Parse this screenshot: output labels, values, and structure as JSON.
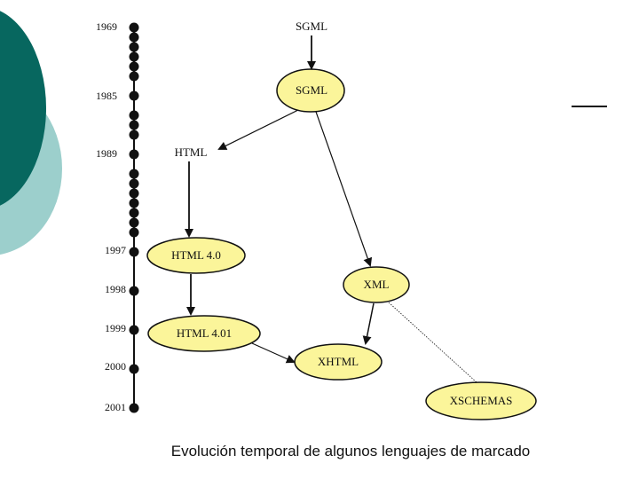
{
  "diagram": {
    "years": {
      "y1969": "1969",
      "y1985": "1985",
      "y1989": "1989",
      "y1997": "1997",
      "y1998": "1998",
      "y1999": "1999",
      "y2000": "2000",
      "y2001": "2001"
    },
    "nodes": {
      "sgml_top": "SGML",
      "sgml": "SGML",
      "html": "HTML",
      "html40": "HTML 4.0",
      "html401": "HTML 4.01",
      "xml": "XML",
      "xhtml": "XHTML",
      "xschemas": "XSCHEMAS"
    },
    "caption": "Evolución temporal de algunos lenguajes de marcado"
  },
  "colors": {
    "teal_dark": "#07675f",
    "teal_light": "#9ccfcc",
    "node_fill": "#fbf59a",
    "stroke": "#111111"
  }
}
